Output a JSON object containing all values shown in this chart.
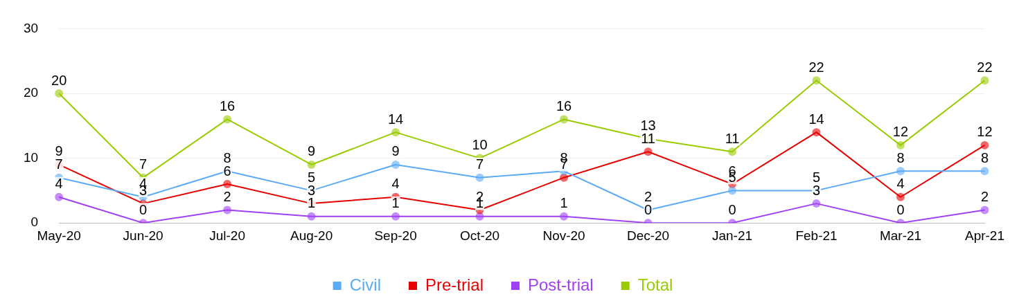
{
  "chart_data": {
    "type": "line",
    "categories": [
      "May-20",
      "Jun-20",
      "Jul-20",
      "Aug-20",
      "Sep-20",
      "Oct-20",
      "Nov-20",
      "Dec-20",
      "Jan-21",
      "Feb-21",
      "Mar-21",
      "Apr-21"
    ],
    "series": [
      {
        "name": "Civil",
        "color": "#5aaaf5",
        "values": [
          7,
          4,
          8,
          5,
          9,
          7,
          8,
          2,
          5,
          5,
          8,
          8
        ]
      },
      {
        "name": "Pre-trial",
        "color": "#e60000",
        "values": [
          9,
          3,
          6,
          3,
          4,
          2,
          7,
          11,
          6,
          14,
          4,
          12
        ]
      },
      {
        "name": "Post-trial",
        "color": "#a040f5",
        "values": [
          4,
          0,
          2,
          1,
          1,
          1,
          1,
          0,
          0,
          3,
          0,
          2
        ]
      },
      {
        "name": "Total",
        "color": "#99cc00",
        "values": [
          20,
          7,
          16,
          9,
          14,
          10,
          16,
          13,
          11,
          22,
          12,
          22
        ]
      }
    ],
    "ylim": [
      0,
      30
    ],
    "yticks": [
      0,
      10,
      20,
      30
    ],
    "grid": "y",
    "legend": "bottom",
    "marker": "circle",
    "line_style": "solid",
    "data_labels": true
  }
}
